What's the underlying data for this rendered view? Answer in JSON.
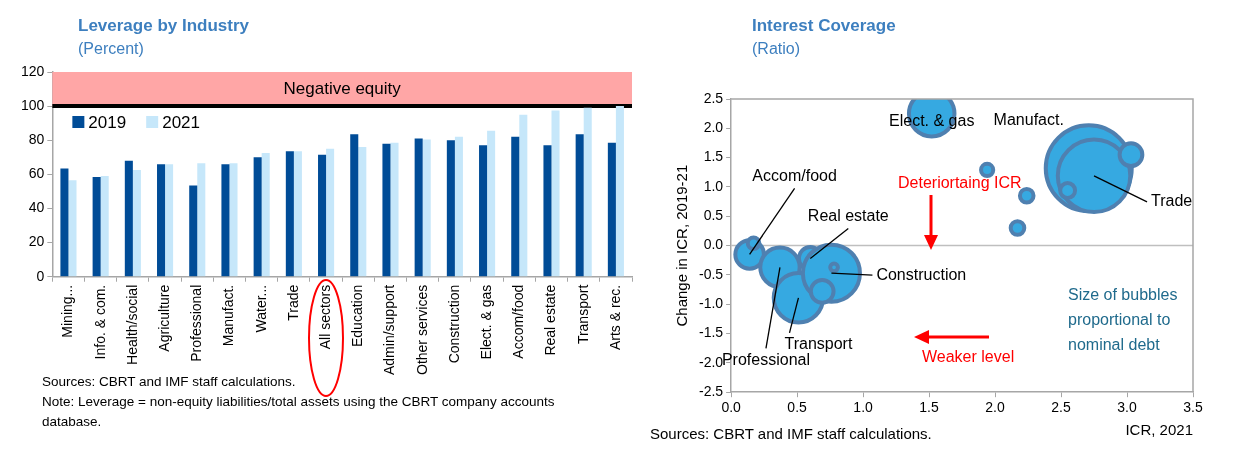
{
  "chart_data": [
    {
      "type": "bar",
      "title": "Leverage by Industry",
      "subtitle": "(Percent)",
      "categories": [
        "Mining...",
        "Info. & com.",
        "Health/social",
        "Agriculture",
        "Professional",
        "Manufact.",
        "Water...",
        "Trade",
        "All sectors",
        "Education",
        "Admin/support",
        "Other services",
        "Construction",
        "Elect. & gas",
        "Accom/food",
        "Real estate",
        "Transport",
        "Arts & rec."
      ],
      "series": [
        {
          "name": "2019",
          "color": "#004c97",
          "values": [
            63.5,
            58.5,
            68,
            66,
            53.5,
            66,
            70,
            73.5,
            71.5,
            83.5,
            78,
            81,
            80,
            77,
            82,
            77,
            83.5,
            78.5
          ]
        },
        {
          "name": "2021",
          "color": "#c6e7fa",
          "values": [
            56.5,
            59,
            62.5,
            66,
            66.5,
            66.5,
            72.5,
            73.5,
            75,
            76,
            78.5,
            80.5,
            82,
            85.5,
            95,
            97.5,
            99,
            100
          ]
        }
      ],
      "ylim": [
        0,
        120
      ],
      "yticks": [
        0,
        20,
        40,
        60,
        80,
        100,
        120
      ],
      "bands": [
        {
          "axis": "y",
          "from": 100,
          "to": 120,
          "label": "Negative equity",
          "color": "#ffa6a6"
        }
      ],
      "ref_lines": [
        {
          "axis": "y",
          "value": 100,
          "color": "#000000"
        }
      ],
      "legend": "top left",
      "grid": false,
      "annotations": [
        "Sources: CBRT and IMF staff calculations.",
        "Note: Leverage = non-equity liabilities/total assets using the CBRT company accounts database."
      ]
    },
    {
      "type": "bubble",
      "title": "Interest Coverage",
      "subtitle": "(Ratio)",
      "xlabel": "ICR, 2021",
      "ylabel": "Change in ICR, 2019-21",
      "x": [
        1.52,
        2.71,
        2.75,
        2.55,
        3.03,
        1.94,
        2.24,
        2.17,
        0.14,
        0.17,
        0.37,
        0.51,
        0.6,
        0.76,
        0.69,
        0.78
      ],
      "values": [
        2.25,
        1.32,
        1.19,
        0.94,
        1.55,
        1.29,
        0.85,
        0.3,
        -0.15,
        0.04,
        -0.37,
        -0.89,
        -0.22,
        -0.47,
        -0.78,
        -0.37
      ],
      "sizes": [
        0.28,
        1,
        0.71,
        0.03,
        0.07,
        0.02,
        0.025,
        0.025,
        0.11,
        0.018,
        0.21,
        0.33,
        0.07,
        0.44,
        0.07,
        0.008
      ],
      "color": "#36a9e1",
      "xlim": [
        0,
        3.5
      ],
      "xticks": [
        {
          "value": 0,
          "label": "0.0"
        },
        0.5,
        {
          "value": 1,
          "label": "1.0"
        },
        1.5,
        {
          "value": 2,
          "label": "2.0"
        },
        2.5,
        {
          "value": 3,
          "label": "3.0"
        },
        3.5
      ],
      "ylim": [
        -2.5,
        2.5
      ],
      "yticks": [
        -2.5,
        {
          "value": -2,
          "label": "-2.0"
        },
        -1.5,
        {
          "value": -1,
          "label": "-1.0"
        },
        -0.5,
        {
          "value": 0,
          "label": "0.0"
        },
        0.5,
        {
          "value": 1,
          "label": "1.0"
        },
        1.5,
        {
          "value": 2,
          "label": "2.0"
        },
        2.5
      ],
      "ref_lines": [
        {
          "axis": "y",
          "value": 0,
          "color": "#bfbfbf"
        }
      ],
      "grid": false,
      "annotations": [
        {
          "text": "Elect. & gas",
          "x": 1.52,
          "y": 2.25
        },
        {
          "text": "Manufact.",
          "x": 2.71,
          "y": 1.32
        },
        {
          "text": "Trade",
          "x": 2.75,
          "y": 1.19
        },
        {
          "text": "Accom/food",
          "x": 0.14,
          "y": -0.15
        },
        {
          "text": "Real estate",
          "x": 0.6,
          "y": -0.22
        },
        {
          "text": "Construction",
          "x": 0.76,
          "y": -0.47
        },
        {
          "text": "Transport",
          "x": 0.51,
          "y": -0.89
        },
        {
          "text": "Professional",
          "x": 0.37,
          "y": -0.37
        },
        "Deteriortaing ICR",
        "Weaker level",
        "Size of bubbles proportional to nominal debt",
        "Sources: CBRT and IMF staff calculations."
      ]
    }
  ]
}
